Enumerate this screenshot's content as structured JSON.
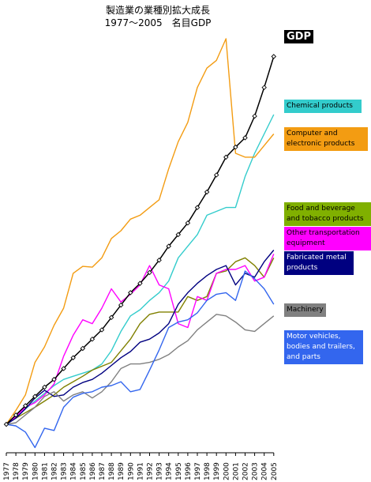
{
  "chart_data": {
    "type": "line",
    "title": "製造業の業種別拡大成長",
    "subtitle": "1977～2005　名目GDP",
    "xlabel": "",
    "ylabel": "",
    "x": [
      1977,
      1978,
      1979,
      1980,
      1981,
      1982,
      1983,
      1984,
      1985,
      1986,
      1987,
      1988,
      1989,
      1990,
      1991,
      1992,
      1993,
      1994,
      1995,
      1996,
      1997,
      1998,
      1999,
      2000,
      2001,
      2002,
      2003,
      2004,
      2005
    ],
    "ylim": [
      0,
      6.0
    ],
    "grid": false,
    "legend": "right",
    "series": [
      {
        "name": "GDP",
        "color": "#000000",
        "markers": true,
        "values": [
          1.0,
          1.12,
          1.24,
          1.36,
          1.48,
          1.58,
          1.72,
          1.86,
          1.98,
          2.1,
          2.22,
          2.38,
          2.54,
          2.7,
          2.82,
          2.96,
          3.12,
          3.3,
          3.45,
          3.6,
          3.8,
          4.0,
          4.22,
          4.45,
          4.58,
          4.7,
          4.98,
          5.35,
          5.75
        ]
      },
      {
        "name": "Chemical products",
        "color": "#33cccc",
        "values": [
          1.0,
          1.1,
          1.2,
          1.3,
          1.4,
          1.5,
          1.58,
          1.62,
          1.66,
          1.7,
          1.78,
          1.95,
          2.2,
          2.4,
          2.48,
          2.6,
          2.7,
          2.85,
          3.15,
          3.3,
          3.45,
          3.7,
          3.75,
          3.8,
          3.8,
          4.2,
          4.5,
          4.75,
          5.0
        ]
      },
      {
        "name": "Computer and electronic products",
        "color": "#f39c12",
        "values": [
          1.0,
          1.18,
          1.38,
          1.8,
          2.0,
          2.28,
          2.5,
          2.95,
          3.04,
          3.03,
          3.15,
          3.4,
          3.5,
          3.65,
          3.7,
          3.8,
          3.9,
          4.3,
          4.65,
          4.9,
          5.35,
          5.6,
          5.7,
          5.98,
          4.5,
          4.45,
          4.45,
          4.6,
          4.75
        ]
      },
      {
        "name": "Food and beverage and tobacco products",
        "color": "#808000",
        "values": [
          1.0,
          1.08,
          1.15,
          1.22,
          1.3,
          1.38,
          1.48,
          1.55,
          1.62,
          1.7,
          1.75,
          1.8,
          1.95,
          2.1,
          2.3,
          2.42,
          2.45,
          2.45,
          2.45,
          2.65,
          2.6,
          2.65,
          2.95,
          2.98,
          3.1,
          3.15,
          3.05,
          2.9,
          3.15
        ]
      },
      {
        "name": "Other transportation equipment",
        "color": "#ff00ff",
        "values": [
          1.0,
          1.1,
          1.22,
          1.28,
          1.38,
          1.52,
          1.88,
          2.15,
          2.35,
          2.3,
          2.5,
          2.75,
          2.58,
          2.68,
          2.8,
          3.05,
          2.8,
          2.75,
          2.3,
          2.25,
          2.65,
          2.6,
          2.95,
          3.0,
          3.0,
          3.05,
          2.85,
          2.9,
          3.2
        ]
      },
      {
        "name": "Fabricated metal products",
        "color": "#000080",
        "values": [
          1.0,
          1.08,
          1.2,
          1.34,
          1.44,
          1.36,
          1.38,
          1.48,
          1.54,
          1.58,
          1.66,
          1.76,
          1.86,
          1.94,
          2.06,
          2.1,
          2.18,
          2.3,
          2.55,
          2.7,
          2.82,
          2.92,
          3.0,
          3.05,
          2.8,
          2.95,
          2.9,
          3.1,
          3.25
        ]
      },
      {
        "name": "Machinery",
        "color": "#808080",
        "values": [
          1.0,
          1.02,
          1.12,
          1.22,
          1.36,
          1.42,
          1.3,
          1.38,
          1.42,
          1.34,
          1.42,
          1.55,
          1.72,
          1.78,
          1.78,
          1.8,
          1.84,
          1.9,
          2.0,
          2.08,
          2.22,
          2.32,
          2.42,
          2.4,
          2.32,
          2.22,
          2.2,
          2.3,
          2.4
        ]
      },
      {
        "name": "Motor vehicles, bodies and trailers, and parts",
        "color": "#3366ee",
        "values": [
          1.0,
          0.98,
          0.9,
          0.7,
          0.95,
          0.92,
          1.22,
          1.35,
          1.4,
          1.42,
          1.48,
          1.5,
          1.55,
          1.42,
          1.45,
          1.7,
          1.96,
          2.25,
          2.32,
          2.35,
          2.44,
          2.6,
          2.68,
          2.7,
          2.6,
          2.98,
          2.88,
          2.75,
          2.55
        ]
      }
    ],
    "legend_items": [
      {
        "label": "GDP",
        "bg": "#000000",
        "fg": "#ffffff"
      },
      {
        "label": "Chemical products",
        "bg": "#33cccc",
        "fg": "#000000"
      },
      {
        "label": "Computer and electronic products",
        "bg": "#f39c12",
        "fg": "#000000"
      },
      {
        "label": "Food and beverage and tobacco products",
        "bg": "#80b000",
        "fg": "#000000"
      },
      {
        "label": "Other transportation equipment",
        "bg": "#ff00ff",
        "fg": "#000000"
      },
      {
        "label": "Fabricated metal products",
        "bg": "#000080",
        "fg": "#ffffff"
      },
      {
        "label": "Machinery",
        "bg": "#808080",
        "fg": "#000000"
      },
      {
        "label": "Motor vehicles, bodies and trailers, and parts",
        "bg": "#3366ee",
        "fg": "#ffffff"
      }
    ]
  }
}
